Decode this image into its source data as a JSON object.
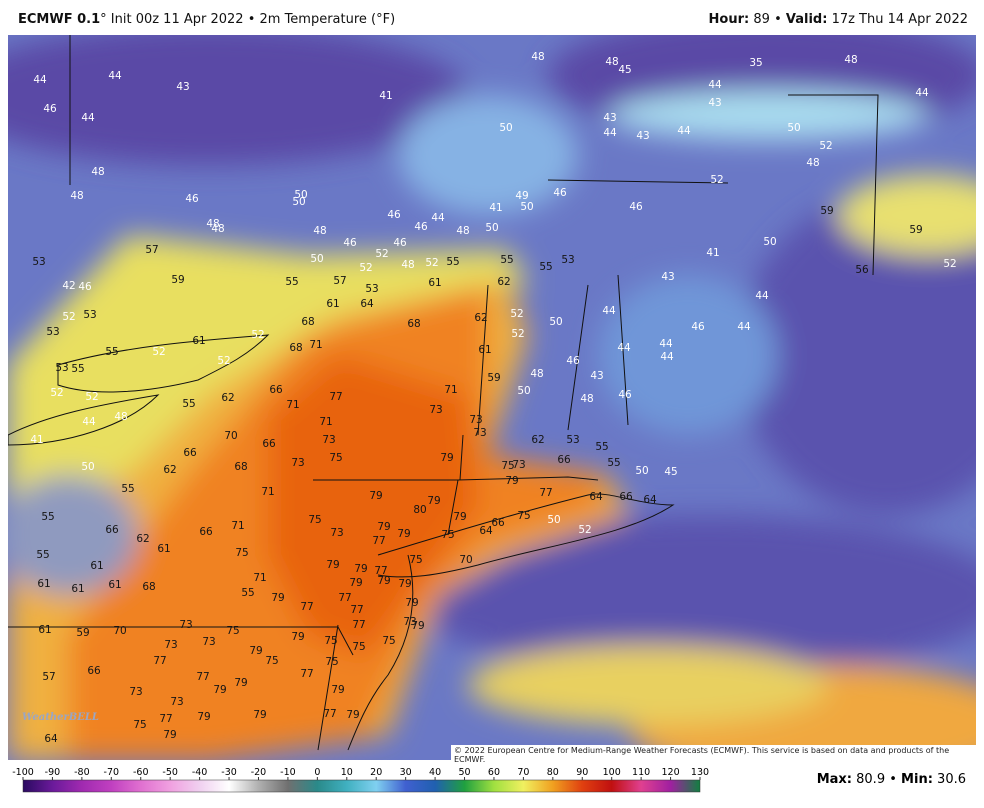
{
  "header": {
    "model": "ECMWF 0.1",
    "info": "° Init 00z 11 Apr 2022 • 2m Temperature (°F)",
    "hour_label": "Hour:",
    "hour": 89,
    "sep": "•",
    "valid_label": "Valid:",
    "valid": "17z Thu 14 Apr 2022"
  },
  "map": {
    "labels": [
      44,
      44,
      43,
      41,
      46,
      44,
      48,
      50,
      43,
      44,
      43,
      44,
      43,
      44,
      35,
      48,
      45,
      48,
      48,
      44,
      50,
      52,
      48,
      59,
      59,
      52,
      56,
      50,
      52,
      41,
      46,
      46,
      50,
      49,
      41,
      50,
      48,
      44,
      46,
      46,
      46,
      46,
      48,
      50,
      50,
      46,
      48,
      48,
      57,
      48,
      59,
      46,
      53,
      50,
      55,
      57,
      52,
      52,
      48,
      52,
      55,
      55,
      55,
      53,
      62,
      61,
      53,
      64,
      61,
      68,
      68,
      62,
      52,
      52,
      50,
      44,
      43,
      44,
      46,
      44,
      46,
      48,
      59,
      61,
      44,
      44,
      44,
      43,
      48,
      50,
      46,
      42,
      53,
      52,
      53,
      55,
      52,
      53,
      55,
      52,
      61,
      52,
      68,
      71,
      66,
      71,
      77,
      71,
      73,
      73,
      73,
      55,
      52,
      48,
      44,
      41,
      52,
      62,
      70,
      66,
      68,
      66,
      71,
      73,
      75,
      73,
      79,
      62,
      53,
      55,
      66,
      73,
      75,
      79,
      77,
      55,
      50,
      45,
      66,
      64,
      64,
      50,
      55,
      62,
      55,
      71,
      79,
      80,
      79,
      79,
      75,
      50,
      66,
      64,
      52,
      66,
      62,
      61,
      66,
      71,
      75,
      73,
      79,
      79,
      77,
      75,
      55,
      61,
      75,
      79,
      79,
      77,
      75,
      70,
      61,
      61,
      61,
      68,
      71,
      55,
      79,
      79,
      79,
      79,
      77,
      77,
      77,
      79,
      61,
      59,
      70,
      73,
      75,
      73,
      73,
      79,
      77,
      73,
      79,
      75,
      75,
      75,
      77,
      79,
      75,
      66,
      57,
      75,
      73,
      73,
      77,
      79,
      79,
      77,
      79,
      77,
      79,
      75,
      79,
      79,
      77,
      79,
      64
    ],
    "logo": "WeatherBELL",
    "credit": "© 2022 European Centre for Medium-Range Weather Forecasts (ECMWF). This service is based on data and products of the ECMWF."
  },
  "colorbar": {
    "ticks": [
      -100,
      -90,
      -80,
      -70,
      -60,
      -50,
      -40,
      -30,
      -20,
      -10,
      0,
      10,
      20,
      30,
      40,
      50,
      60,
      70,
      80,
      90,
      100,
      110,
      120,
      130
    ]
  },
  "stats": {
    "max_label": "Max:",
    "max": 80.9,
    "sep": "•",
    "min_label": "Min:",
    "min": 30.6
  }
}
